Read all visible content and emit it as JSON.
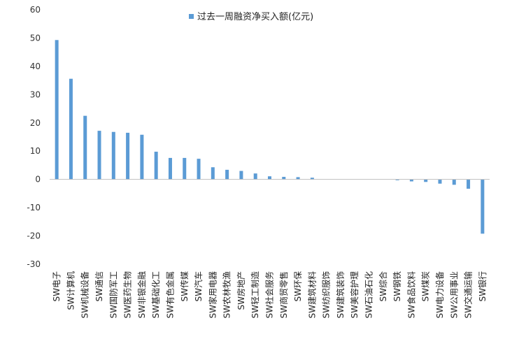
{
  "chart_data": {
    "type": "bar",
    "legend": {
      "label": "过去一周融资净买入额(亿元)",
      "position": "top"
    },
    "series": [
      {
        "name": "过去一周融资净买入额(亿元)",
        "color": "#5b9bd5",
        "values": [
          49.3,
          35.6,
          22.5,
          17.2,
          16.8,
          16.5,
          15.8,
          9.8,
          7.6,
          7.6,
          7.3,
          4.3,
          3.4,
          3.0,
          2.1,
          1.1,
          0.9,
          0.8,
          0.6,
          0.0,
          0.0,
          0.0,
          0.0,
          0.0,
          -0.3,
          -0.7,
          -0.9,
          -1.5,
          -1.9,
          -3.3,
          -19.2
        ]
      }
    ],
    "categories": [
      "SW电子",
      "SW计算机",
      "SW机械设备",
      "SW通信",
      "SW国防军工",
      "SW医药生物",
      "SW非银金融",
      "SW基础化工",
      "SW有色金属",
      "SW传媒",
      "SW汽车",
      "SW家用电器",
      "SW农林牧渔",
      "SW房地产",
      "SW轻工制造",
      "SW社会服务",
      "SW商贸零售",
      "SW环保",
      "SW建筑材料",
      "SW纺织服饰",
      "SW建筑装饰",
      "SW美容护理",
      "SW石油石化",
      "SW综合",
      "SW钢铁",
      "SW食品饮料",
      "SW煤炭",
      "SW电力设备",
      "SW公用事业",
      "SW交通运输",
      "SW银行"
    ],
    "ylim": [
      -30,
      60
    ],
    "yticks": [
      -30,
      -20,
      -10,
      0,
      10,
      20,
      30,
      40,
      50,
      60
    ],
    "grid": false,
    "axis_color": "#bfbfbf"
  }
}
